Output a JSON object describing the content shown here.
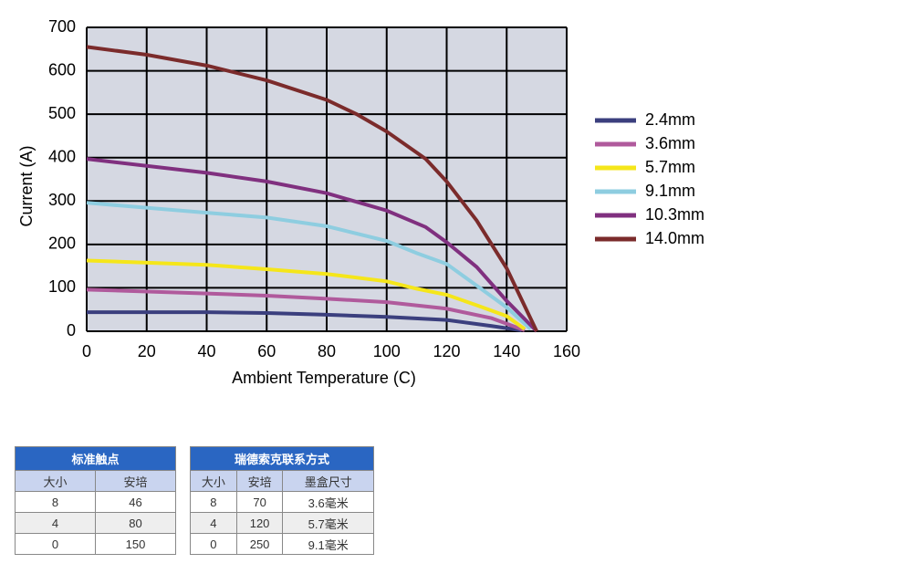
{
  "chart_data": {
    "type": "line",
    "xlabel": "Ambient Temperature (C)",
    "ylabel": "Current (A)",
    "xlim": [
      0,
      160
    ],
    "xticks": [
      0,
      20,
      40,
      60,
      80,
      100,
      120,
      140,
      160
    ],
    "ylim": [
      0,
      700
    ],
    "yticks": [
      0,
      100,
      200,
      300,
      400,
      500,
      600,
      700
    ],
    "grid": true,
    "legend": "right",
    "series": [
      {
        "name": "2.4mm",
        "color": "#3b3f7e",
        "x": [
          0,
          40,
          60,
          80,
          100,
          120,
          135,
          145
        ],
        "values": [
          44,
          44,
          42,
          38,
          33,
          26,
          12,
          2
        ]
      },
      {
        "name": "3.6mm",
        "color": "#b05a9c",
        "x": [
          0,
          40,
          60,
          80,
          100,
          120,
          135,
          146
        ],
        "values": [
          96,
          87,
          82,
          75,
          67,
          52,
          30,
          2
        ]
      },
      {
        "name": "5.7mm",
        "color": "#f5e61a",
        "x": [
          0,
          40,
          60,
          80,
          100,
          110,
          120,
          130,
          140,
          146
        ],
        "values": [
          163,
          153,
          143,
          132,
          115,
          98,
          84,
          60,
          35,
          5
        ]
      },
      {
        "name": "9.1mm",
        "color": "#8ecde0",
        "x": [
          0,
          40,
          60,
          80,
          100,
          110,
          120,
          130,
          140,
          148
        ],
        "values": [
          296,
          273,
          262,
          242,
          208,
          180,
          155,
          105,
          55,
          5
        ]
      },
      {
        "name": "10.3mm",
        "color": "#80307f",
        "x": [
          0,
          40,
          60,
          80,
          100,
          113,
          120,
          130,
          140,
          150
        ],
        "values": [
          397,
          365,
          345,
          318,
          278,
          240,
          205,
          148,
          70,
          0
        ]
      },
      {
        "name": "14.0mm",
        "color": "#7b2b2b",
        "x": [
          0,
          20,
          40,
          60,
          80,
          90,
          100,
          113,
          120,
          130,
          140,
          150
        ],
        "values": [
          655,
          637,
          612,
          578,
          533,
          500,
          460,
          397,
          345,
          255,
          145,
          0
        ]
      }
    ]
  },
  "tables": [
    {
      "title": "标准触点",
      "columns": [
        "大小",
        "安培"
      ],
      "rows": [
        [
          "8",
          "46"
        ],
        [
          "4",
          "80"
        ],
        [
          "0",
          "150"
        ]
      ]
    },
    {
      "title": "瑞德索克联系方式",
      "columns": [
        "大小",
        "安培",
        "墨盒尺寸"
      ],
      "rows": [
        [
          "8",
          "70",
          "3.6毫米"
        ],
        [
          "4",
          "120",
          "5.7毫米"
        ],
        [
          "0",
          "250",
          "9.1毫米"
        ]
      ]
    }
  ]
}
